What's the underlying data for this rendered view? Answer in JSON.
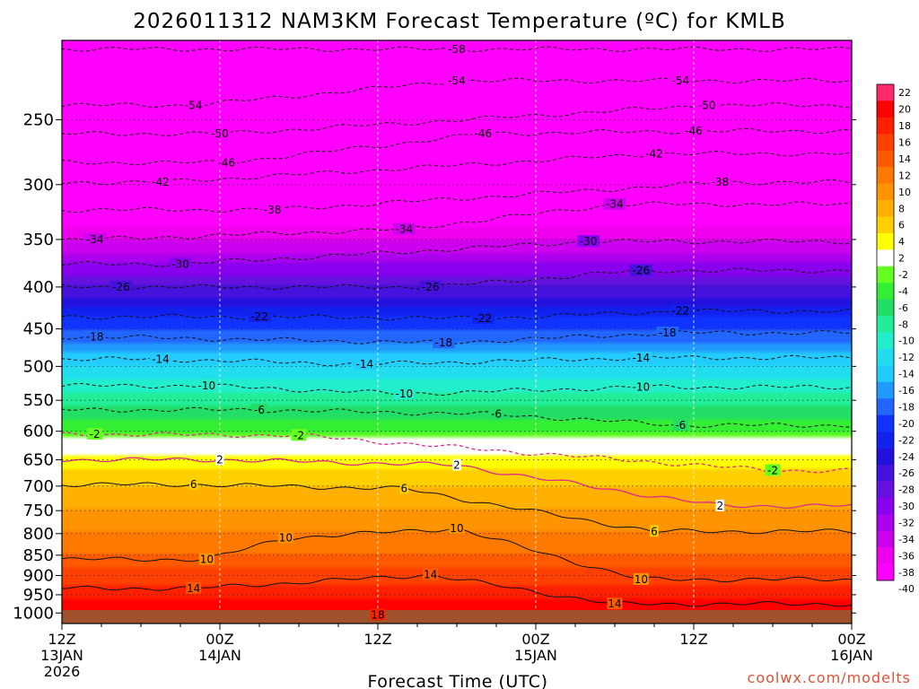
{
  "chart_data": {
    "type": "contour",
    "title": "2026011312 NAM3KM Forecast Temperature (ºC) for KMLB",
    "xlabel": "Forecast Time (UTC)",
    "ylabel": "",
    "credit": "coolwx.com/modelts",
    "x_ticks": [
      {
        "hour": 0,
        "line1": "12Z",
        "line2": "13JAN",
        "line3": "2026"
      },
      {
        "hour": 12,
        "line1": "00Z",
        "line2": "14JAN",
        "line3": ""
      },
      {
        "hour": 24,
        "line1": "12Z",
        "line2": "",
        "line3": ""
      },
      {
        "hour": 36,
        "line1": "00Z",
        "line2": "15JAN",
        "line3": ""
      },
      {
        "hour": 48,
        "line1": "12Z",
        "line2": "",
        "line3": ""
      },
      {
        "hour": 60,
        "line1": "00Z",
        "line2": "16JAN",
        "line3": ""
      }
    ],
    "xlim_hours": [
      0,
      60
    ],
    "y_ticks_hpa": [
      250,
      300,
      350,
      400,
      450,
      500,
      550,
      600,
      650,
      700,
      750,
      800,
      850,
      900,
      950,
      1000
    ],
    "ylim_hpa": [
      200,
      1030
    ],
    "y_scale": "log-pressure",
    "grid": true,
    "ground_color": "#a0522d",
    "colorbar": {
      "placement": "right",
      "labels": [
        "22",
        "20",
        "18",
        "16",
        "14",
        "12",
        "10",
        "8",
        "6",
        "4",
        "2",
        "-2",
        "-4",
        "-6",
        "-8",
        "-10",
        "-12",
        "-14",
        "-16",
        "-18",
        "-20",
        "-22",
        "-24",
        "-26",
        "-28",
        "-30",
        "-32",
        "-34",
        "-36",
        "-38",
        "-40"
      ],
      "colors": [
        "#ff2a6a",
        "#ff0000",
        "#ff2000",
        "#ff4000",
        "#ff5a00",
        "#ff7800",
        "#ff9400",
        "#ffb000",
        "#ffd000",
        "#ffff00",
        "#ffffff",
        "#66ff22",
        "#33ee33",
        "#22dd66",
        "#22ee99",
        "#22eecc",
        "#22ddee",
        "#22ccff",
        "#2299ff",
        "#2266ff",
        "#1133ff",
        "#1122ee",
        "#2211dd",
        "#4411dd",
        "#6611dd",
        "#8800ee",
        "#aa00ee",
        "#cc00ee",
        "#ee00ee",
        "#ff00ff"
      ]
    },
    "levels_hpa": [
      200,
      250,
      300,
      350,
      400,
      450,
      500,
      550,
      600,
      650,
      700,
      750,
      800,
      850,
      900,
      950,
      1000
    ],
    "temperature_profile": [
      -58,
      -52,
      -45,
      -36,
      -28,
      -20,
      -14,
      -9,
      -4,
      3,
      6,
      8,
      10,
      12,
      15,
      17,
      20
    ],
    "contour_labels": [
      {
        "label": "-58",
        "hour": 30,
        "hpa": 205
      },
      {
        "label": "-54",
        "hour": 30,
        "hpa": 224
      },
      {
        "label": "-54",
        "hour": 47,
        "hpa": 224
      },
      {
        "label": "-54",
        "hour": 10,
        "hpa": 240
      },
      {
        "label": "-50",
        "hour": 49,
        "hpa": 240
      },
      {
        "label": "-50",
        "hour": 12,
        "hpa": 260
      },
      {
        "label": "-46",
        "hour": 32,
        "hpa": 260
      },
      {
        "label": "-46",
        "hour": 48,
        "hpa": 258
      },
      {
        "label": "-46",
        "hour": 12.5,
        "hpa": 282
      },
      {
        "label": "-42",
        "hour": 45,
        "hpa": 275
      },
      {
        "label": "-42",
        "hour": 7.5,
        "hpa": 298
      },
      {
        "label": "-38",
        "hour": 50,
        "hpa": 298
      },
      {
        "label": "-38",
        "hour": 16,
        "hpa": 322
      },
      {
        "label": "-34",
        "hour": 42,
        "hpa": 317
      },
      {
        "label": "-34",
        "hour": 26,
        "hpa": 340
      },
      {
        "label": "-34",
        "hour": 2.5,
        "hpa": 350
      },
      {
        "label": "-30",
        "hour": 40,
        "hpa": 352
      },
      {
        "label": "-30",
        "hour": 9,
        "hpa": 375
      },
      {
        "label": "-26",
        "hour": 44,
        "hpa": 382
      },
      {
        "label": "-26",
        "hour": 4.5,
        "hpa": 400
      },
      {
        "label": "-26",
        "hour": 28,
        "hpa": 400
      },
      {
        "label": "-22",
        "hour": 47,
        "hpa": 428
      },
      {
        "label": "-22",
        "hour": 15,
        "hpa": 435
      },
      {
        "label": "-22",
        "hour": 32,
        "hpa": 437
      },
      {
        "label": "-18",
        "hour": 46,
        "hpa": 455
      },
      {
        "label": "-18",
        "hour": 2.5,
        "hpa": 460
      },
      {
        "label": "-18",
        "hour": 29,
        "hpa": 468
      },
      {
        "label": "-14",
        "hour": 44,
        "hpa": 488
      },
      {
        "label": "-14",
        "hour": 7.5,
        "hpa": 490
      },
      {
        "label": "-14",
        "hour": 23,
        "hpa": 497
      },
      {
        "label": "-10",
        "hour": 11,
        "hpa": 528
      },
      {
        "label": "-10",
        "hour": 44,
        "hpa": 530
      },
      {
        "label": "-10",
        "hour": 26,
        "hpa": 540
      },
      {
        "label": "-6",
        "hour": 15,
        "hpa": 565
      },
      {
        "label": "-6",
        "hour": 33,
        "hpa": 572
      },
      {
        "label": "-6",
        "hour": 47,
        "hpa": 590
      },
      {
        "label": "-2",
        "hour": 2.5,
        "hpa": 605
      },
      {
        "label": "-2",
        "hour": 18,
        "hpa": 607
      },
      {
        "label": "-2",
        "hour": 54,
        "hpa": 670
      },
      {
        "label": "2",
        "hour": 12,
        "hpa": 650
      },
      {
        "label": "2",
        "hour": 30,
        "hpa": 660
      },
      {
        "label": "2",
        "hour": 50,
        "hpa": 740
      },
      {
        "label": "6",
        "hour": 10,
        "hpa": 697
      },
      {
        "label": "6",
        "hour": 26,
        "hpa": 705
      },
      {
        "label": "6",
        "hour": 45,
        "hpa": 795
      },
      {
        "label": "10",
        "hour": 17,
        "hpa": 810
      },
      {
        "label": "10",
        "hour": 30,
        "hpa": 788
      },
      {
        "label": "10",
        "hour": 11,
        "hpa": 860
      },
      {
        "label": "10",
        "hour": 44,
        "hpa": 910
      },
      {
        "label": "14",
        "hour": 28,
        "hpa": 898
      },
      {
        "label": "14",
        "hour": 10,
        "hpa": 933
      },
      {
        "label": "14",
        "hour": 42,
        "hpa": 975
      },
      {
        "label": "18",
        "hour": 24,
        "hpa": 1005
      }
    ]
  }
}
